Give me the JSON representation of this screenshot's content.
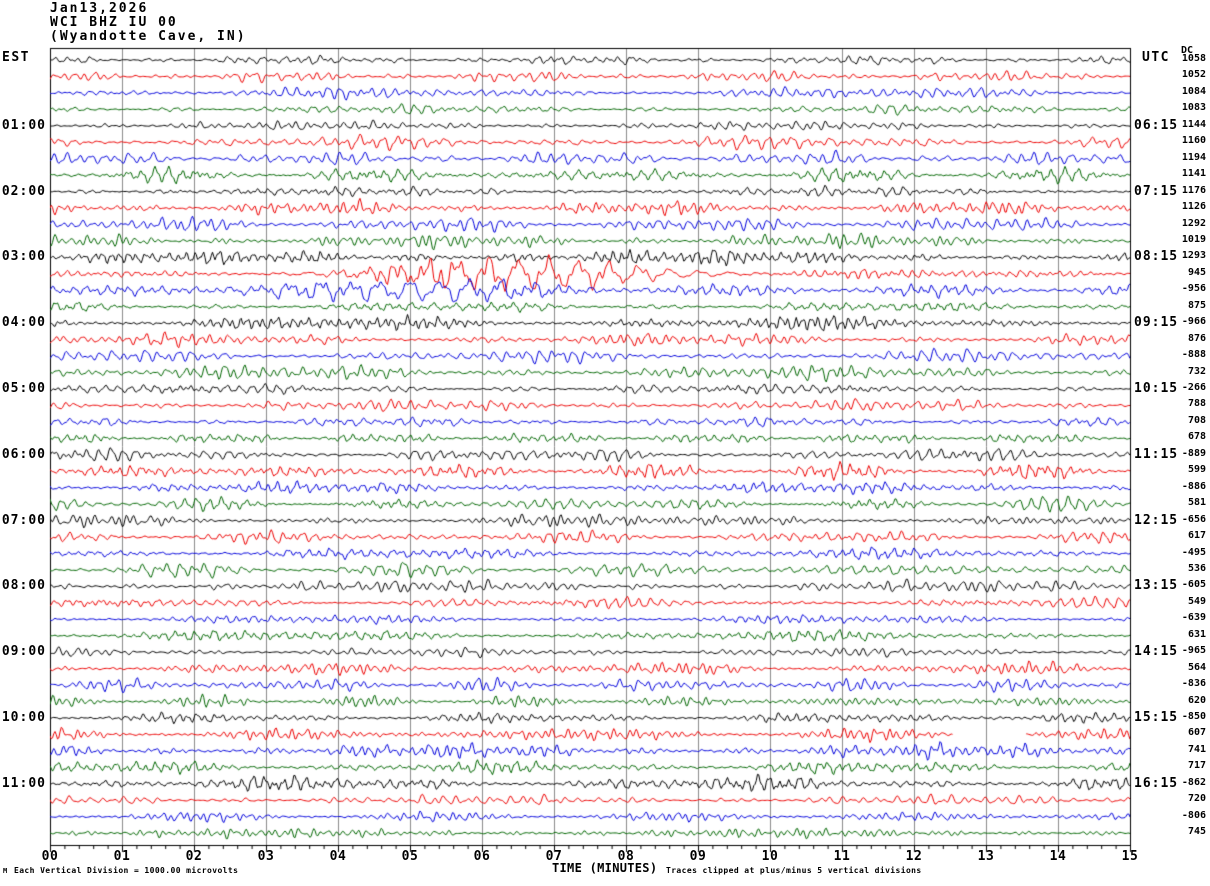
{
  "header": {
    "date": "Jan13,2026",
    "station": "WCI BHZ IU 00",
    "location": "(Wyandotte Cave, IN)"
  },
  "left_axis": {
    "header": "EST",
    "labels": [
      "01:00",
      "02:00",
      "03:00",
      "04:00",
      "05:00",
      "06:00",
      "07:00",
      "08:00",
      "09:00",
      "10:00",
      "11:00"
    ]
  },
  "right_axis": {
    "header": "UTC",
    "dc_header": "DC",
    "labels": [
      "06:15",
      "07:15",
      "08:15",
      "09:15",
      "10:15",
      "11:15",
      "12:15",
      "13:15",
      "14:15",
      "15:15",
      "16:15"
    ]
  },
  "x_axis": {
    "title": "TIME (MINUTES)",
    "tick_labels": [
      "00",
      "01",
      "02",
      "03",
      "04",
      "05",
      "06",
      "07",
      "08",
      "09",
      "10",
      "11",
      "12",
      "13",
      "14",
      "15"
    ]
  },
  "footer": {
    "left_note": "Each Vertical Division = 1000.00 microvolts",
    "right_note": "Traces clipped at plus/minus 5 vertical divisions",
    "corner_mark": "M"
  },
  "colors": {
    "trace_cycle": [
      "#000000",
      "#ee0000",
      "#0000dd",
      "#006600"
    ],
    "grid": "#8a8a8a",
    "border": "#000000",
    "background": "#ffffff"
  },
  "chart_data": {
    "type": "line",
    "subtype": "helicorder-seismogram",
    "title": "WCI BHZ IU 00 (Wyandotte Cave, IN) Jan13,2026",
    "xlabel": "TIME (MINUTES)",
    "x_range_minutes": [
      0,
      15
    ],
    "minutes_per_line": 15,
    "traces_per_hour": 4,
    "num_traces": 48,
    "left_time_zone": "EST",
    "right_time_zone": "UTC",
    "left_hour_marks": [
      "01:00",
      "02:00",
      "03:00",
      "04:00",
      "05:00",
      "06:00",
      "07:00",
      "08:00",
      "09:00",
      "10:00",
      "11:00"
    ],
    "right_hour_marks": [
      "06:15",
      "07:15",
      "08:15",
      "09:15",
      "10:15",
      "11:15",
      "12:15",
      "13:15",
      "14:15",
      "15:15",
      "16:15"
    ],
    "dc_offsets": [
      1058,
      1052,
      1084,
      1083,
      1144,
      1160,
      1194,
      1141,
      1176,
      1126,
      1292,
      1019,
      1293,
      945,
      -956,
      875,
      -966,
      876,
      -888,
      732,
      -266,
      788,
      708,
      678,
      -889,
      599,
      -886,
      581,
      -656,
      617,
      -495,
      536,
      -605,
      549,
      -639,
      631,
      -965,
      564,
      -836,
      620,
      -850,
      607,
      741,
      717,
      -862,
      720,
      -806,
      745
    ],
    "scale_note": "Each Vertical Division = 1000.00 microvolts",
    "clip_note": "Traces clipped at plus/minus 5 vertical divisions",
    "grid": "vertical gray line each minute",
    "events": [
      {
        "row": 12,
        "center_min": 6.5,
        "width_min": 4.5,
        "gain": 1.6
      },
      {
        "row": 13,
        "center_min": 6.5,
        "width_min": 3.5,
        "gain": 2.6,
        "slow": true
      },
      {
        "row": 14,
        "center_min": 5.0,
        "width_min": 3.0,
        "gain": 1.8,
        "slow": true
      },
      {
        "row": 40,
        "center_min": 13.5,
        "width_min": 1.2,
        "gain": 1.9
      },
      {
        "row": 41,
        "center_min": 6.8,
        "width_min": 1.5,
        "gain": 1.5,
        "gap_min": [
          12.55,
          13.55
        ]
      }
    ]
  }
}
